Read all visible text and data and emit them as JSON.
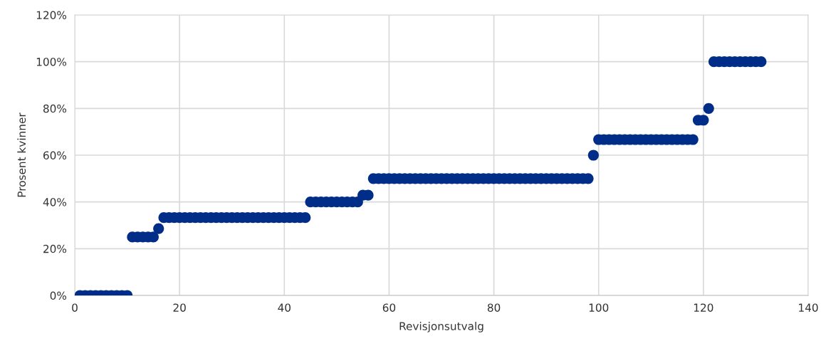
{
  "chart_data": {
    "type": "scatter",
    "xlabel": "Revisjonsutvalg",
    "ylabel": "Prosent kvinner",
    "x": [
      1,
      2,
      3,
      4,
      5,
      6,
      7,
      8,
      9,
      10,
      11,
      12,
      13,
      14,
      15,
      16,
      17,
      18,
      19,
      20,
      21,
      22,
      23,
      24,
      25,
      26,
      27,
      28,
      29,
      30,
      31,
      32,
      33,
      34,
      35,
      36,
      37,
      38,
      39,
      40,
      41,
      42,
      43,
      44,
      45,
      46,
      47,
      48,
      49,
      50,
      51,
      52,
      53,
      54,
      55,
      56,
      57,
      58,
      59,
      60,
      61,
      62,
      63,
      64,
      65,
      66,
      67,
      68,
      69,
      70,
      71,
      72,
      73,
      74,
      75,
      76,
      77,
      78,
      79,
      80,
      81,
      82,
      83,
      84,
      85,
      86,
      87,
      88,
      89,
      90,
      91,
      92,
      93,
      94,
      95,
      96,
      97,
      98,
      99,
      100,
      101,
      102,
      103,
      104,
      105,
      106,
      107,
      108,
      109,
      110,
      111,
      112,
      113,
      114,
      115,
      116,
      117,
      118,
      119,
      120,
      121,
      122,
      123,
      124,
      125,
      126,
      127,
      128,
      129,
      130,
      131
    ],
    "series": [
      {
        "color": "#002d87",
        "values": [
          0,
          0,
          0,
          0,
          0,
          0,
          0,
          0,
          0,
          0,
          25,
          25,
          25,
          25,
          25,
          28.6,
          33.3,
          33.3,
          33.3,
          33.3,
          33.3,
          33.3,
          33.3,
          33.3,
          33.3,
          33.3,
          33.3,
          33.3,
          33.3,
          33.3,
          33.3,
          33.3,
          33.3,
          33.3,
          33.3,
          33.3,
          33.3,
          33.3,
          33.3,
          33.3,
          33.3,
          33.3,
          33.3,
          33.3,
          40,
          40,
          40,
          40,
          40,
          40,
          40,
          40,
          40,
          40,
          42.9,
          42.9,
          50,
          50,
          50,
          50,
          50,
          50,
          50,
          50,
          50,
          50,
          50,
          50,
          50,
          50,
          50,
          50,
          50,
          50,
          50,
          50,
          50,
          50,
          50,
          50,
          50,
          50,
          50,
          50,
          50,
          50,
          50,
          50,
          50,
          50,
          50,
          50,
          50,
          50,
          50,
          50,
          50,
          50,
          60,
          66.7,
          66.7,
          66.7,
          66.7,
          66.7,
          66.7,
          66.7,
          66.7,
          66.7,
          66.7,
          66.7,
          66.7,
          66.7,
          66.7,
          66.7,
          66.7,
          66.7,
          66.7,
          66.7,
          75,
          75,
          80,
          100,
          100,
          100,
          100,
          100,
          100,
          100,
          100,
          100,
          100
        ]
      }
    ],
    "xlim": [
      0,
      140
    ],
    "xticks": [
      0,
      20,
      40,
      60,
      80,
      100,
      120,
      140
    ],
    "ylim": [
      0,
      120
    ],
    "yticks": [
      {
        "value": 0,
        "label": "0%"
      },
      {
        "value": 20,
        "label": "20%"
      },
      {
        "value": 40,
        "label": "40%"
      },
      {
        "value": 60,
        "label": "60%"
      },
      {
        "value": 80,
        "label": "80%"
      },
      {
        "value": 100,
        "label": "100%"
      },
      {
        "value": 120,
        "label": "120%"
      }
    ],
    "grid": true,
    "marker": "circle"
  }
}
